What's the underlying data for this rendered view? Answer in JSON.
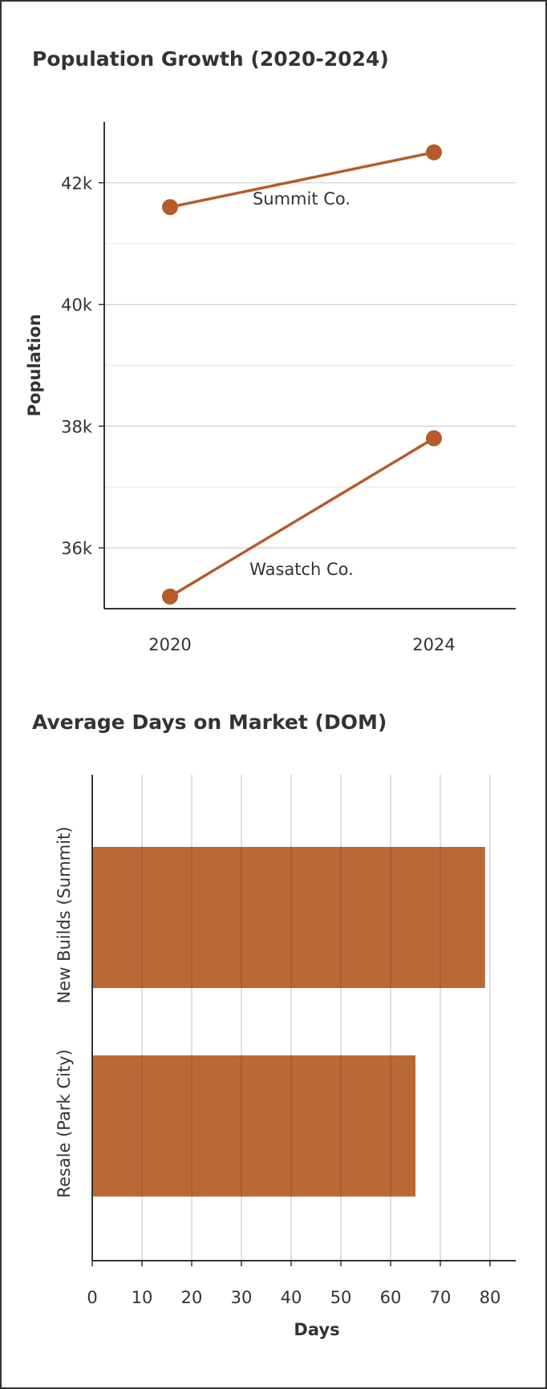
{
  "chart_data": [
    {
      "type": "line",
      "title": "Population Growth (2020-2024)",
      "ylabel": "Population",
      "xlabel": "",
      "x": [
        "2020",
        "2024"
      ],
      "ylim": [
        35000,
        43000
      ],
      "y_ticks": [
        36000,
        38000,
        40000,
        42000
      ],
      "y_tick_labels": [
        "36k",
        "38k",
        "40k",
        "42k"
      ],
      "grid": true,
      "color": "#b65c28",
      "series": [
        {
          "name": "Summit Co.",
          "values": [
            41600,
            42500
          ]
        },
        {
          "name": "Wasatch Co.",
          "values": [
            35200,
            37800
          ]
        }
      ]
    },
    {
      "type": "bar",
      "orientation": "horizontal",
      "title": "Average Days on Market (DOM)",
      "xlabel": "Days",
      "ylabel": "",
      "categories": [
        "New Builds (Summit)",
        "Resale (Park City)"
      ],
      "values": [
        79,
        65
      ],
      "xlim": [
        0,
        85
      ],
      "x_ticks": [
        0,
        10,
        20,
        30,
        40,
        50,
        60,
        70,
        80
      ],
      "grid": true,
      "color": "#b65c28"
    }
  ]
}
